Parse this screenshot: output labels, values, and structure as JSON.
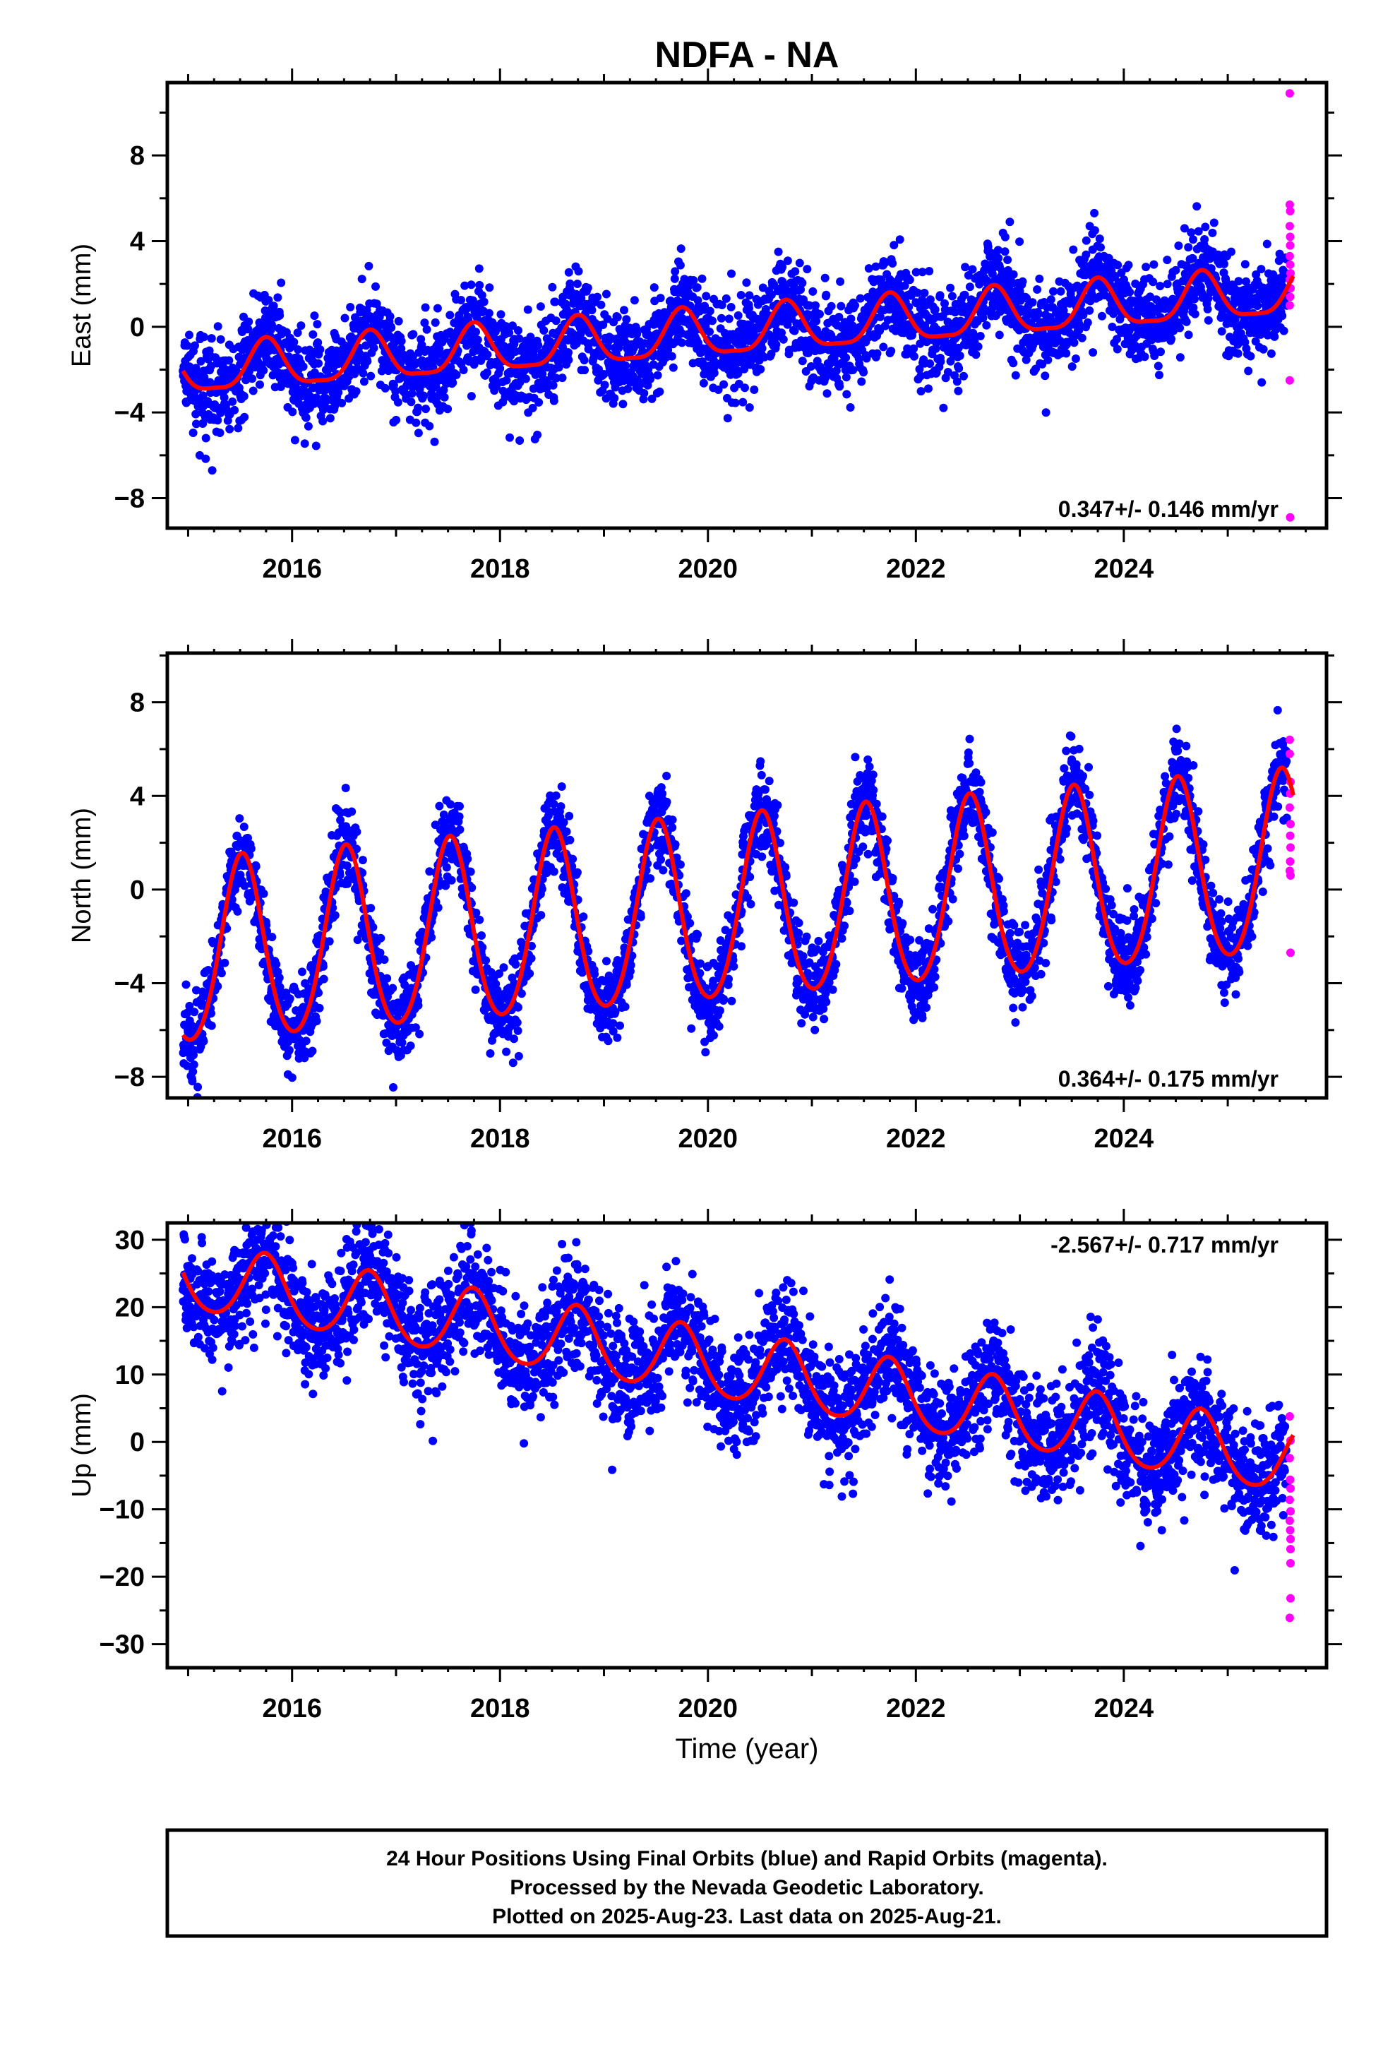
{
  "chart_data": {
    "title": "NDFA - NA",
    "type": "scatter",
    "xlabel": "Time (year)",
    "xlim": [
      2014.8,
      2025.95
    ],
    "xticks": [
      2016,
      2018,
      2020,
      2022,
      2024
    ],
    "final_orbits_color": "#0000ff",
    "rapid_orbits_color": "#ff00ff",
    "fit_color": "#ff0000",
    "panels": [
      {
        "ylabel": "East (mm)",
        "ylim": [
          -9.4,
          11.4
        ],
        "yticks": [
          -8,
          -4,
          0,
          4,
          8
        ],
        "rate": "0.347+/- 0.146 mm/yr",
        "rate_placement": "bottom-right",
        "show_x_tick_labels": true,
        "model": {
          "offset": -0.4,
          "trend": 0.347,
          "annual_amp": 1.1,
          "annual_peak": 0.75,
          "semiannual_amp": 0.3,
          "scatter": 1.1
        },
        "rapid_values": [
          10.9,
          5.7,
          5.4,
          4.7,
          4.2,
          3.8,
          3.3,
          2.9,
          2.5,
          2.2,
          1.8,
          1.4,
          1.0,
          -2.5,
          -8.9
        ]
      },
      {
        "ylabel": "North (mm)",
        "ylim": [
          -8.9,
          10.1
        ],
        "yticks": [
          -8,
          -4,
          0,
          4,
          8
        ],
        "rate": "0.364+/- 0.175 mm/yr",
        "rate_placement": "bottom-right",
        "show_x_tick_labels": true,
        "model": {
          "offset": -1.1,
          "trend": 0.364,
          "annual_amp": 3.9,
          "annual_peak": 0.52,
          "semiannual_amp": 0.4,
          "scatter": 0.9
        },
        "rapid_values": [
          6.4,
          5.8,
          4.6,
          4.1,
          3.5,
          2.8,
          2.3,
          1.8,
          1.2,
          0.8,
          0.6,
          -2.7
        ]
      },
      {
        "ylabel": "Up (mm)",
        "ylim": [
          -33.5,
          32.5
        ],
        "yticks": [
          -30,
          -20,
          -10,
          0,
          10,
          20,
          30
        ],
        "rate": "-2.567+/- 0.717 mm/yr",
        "rate_placement": "top-right",
        "show_x_tick_labels": true,
        "model": {
          "offset": 11.5,
          "trend": -2.567,
          "annual_amp": 5.0,
          "annual_peak": 0.74,
          "semiannual_amp": 0.6,
          "scatter": 4.2
        },
        "rapid_values": [
          3.8,
          0.2,
          -2.4,
          -5.6,
          -6.9,
          -8.6,
          -10.3,
          -11.7,
          -13.1,
          -14.4,
          -15.9,
          -18.0,
          -23.2,
          -26.1
        ]
      }
    ],
    "footer_lines": [
      "24 Hour Positions Using Final Orbits (blue) and Rapid Orbits (magenta).",
      "Processed by the Nevada Geodetic Laboratory.",
      "Plotted on 2025-Aug-23. Last data on 2025-Aug-21."
    ]
  }
}
